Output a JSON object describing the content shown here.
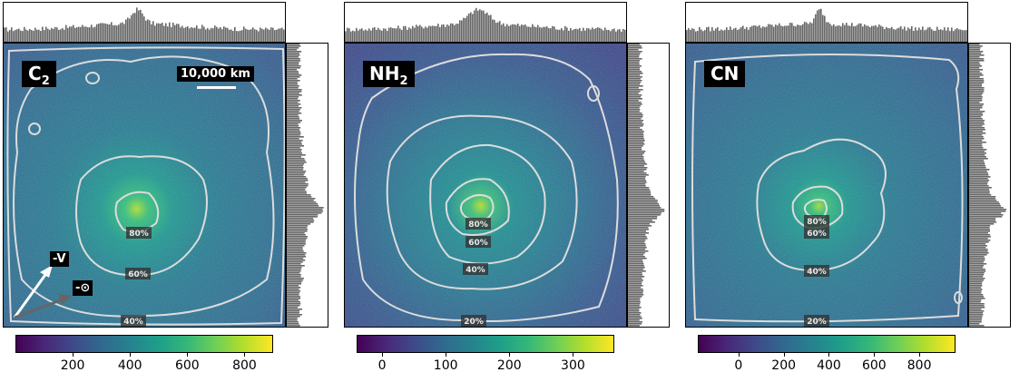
{
  "panels": [
    {
      "title": "C",
      "title_sub": "2",
      "colorbar_ticks": [
        "200",
        "400",
        "600",
        "800"
      ],
      "colorbar_tick_values": [
        200,
        400,
        600,
        800
      ],
      "colorbar_range": [
        0,
        900
      ],
      "contour_labels": [
        "80%",
        "60%",
        "40%"
      ],
      "scale_bar": "10,000 km",
      "arrow_v": "-V",
      "arrow_sun": "-⊙",
      "histogram_peak": "center"
    },
    {
      "title": "NH",
      "title_sub": "2",
      "colorbar_ticks": [
        "0",
        "100",
        "200",
        "300"
      ],
      "colorbar_tick_values": [
        0,
        100,
        200,
        300
      ],
      "colorbar_range": [
        -40,
        365
      ],
      "contour_labels": [
        "80%",
        "60%",
        "40%",
        "20%"
      ]
    },
    {
      "title": "CN",
      "title_sub": "",
      "colorbar_ticks": [
        "0",
        "200",
        "400",
        "600",
        "800"
      ],
      "colorbar_tick_values": [
        0,
        200,
        400,
        600,
        800
      ],
      "colorbar_range": [
        -180,
        960
      ],
      "contour_labels": [
        "80%",
        "60%",
        "40%",
        "20%"
      ]
    }
  ],
  "chart_data": [
    {
      "type": "heatmap",
      "title": "C2",
      "colorbar": {
        "ticks": [
          200,
          400,
          600,
          800
        ],
        "range": [
          0,
          900
        ],
        "colormap": "viridis"
      },
      "contours": [
        "80%",
        "60%",
        "40%"
      ],
      "scale": "10,000 km",
      "marginal_histograms": true
    },
    {
      "type": "heatmap",
      "title": "NH2",
      "colorbar": {
        "ticks": [
          0,
          100,
          200,
          300
        ],
        "range": [
          -40,
          365
        ],
        "colormap": "viridis"
      },
      "contours": [
        "80%",
        "60%",
        "40%",
        "20%"
      ],
      "marginal_histograms": true
    },
    {
      "type": "heatmap",
      "title": "CN",
      "colorbar": {
        "ticks": [
          0,
          200,
          400,
          600,
          800
        ],
        "range": [
          -180,
          960
        ],
        "colormap": "viridis"
      },
      "contours": [
        "80%",
        "60%",
        "40%",
        "20%"
      ],
      "marginal_histograms": true
    }
  ]
}
